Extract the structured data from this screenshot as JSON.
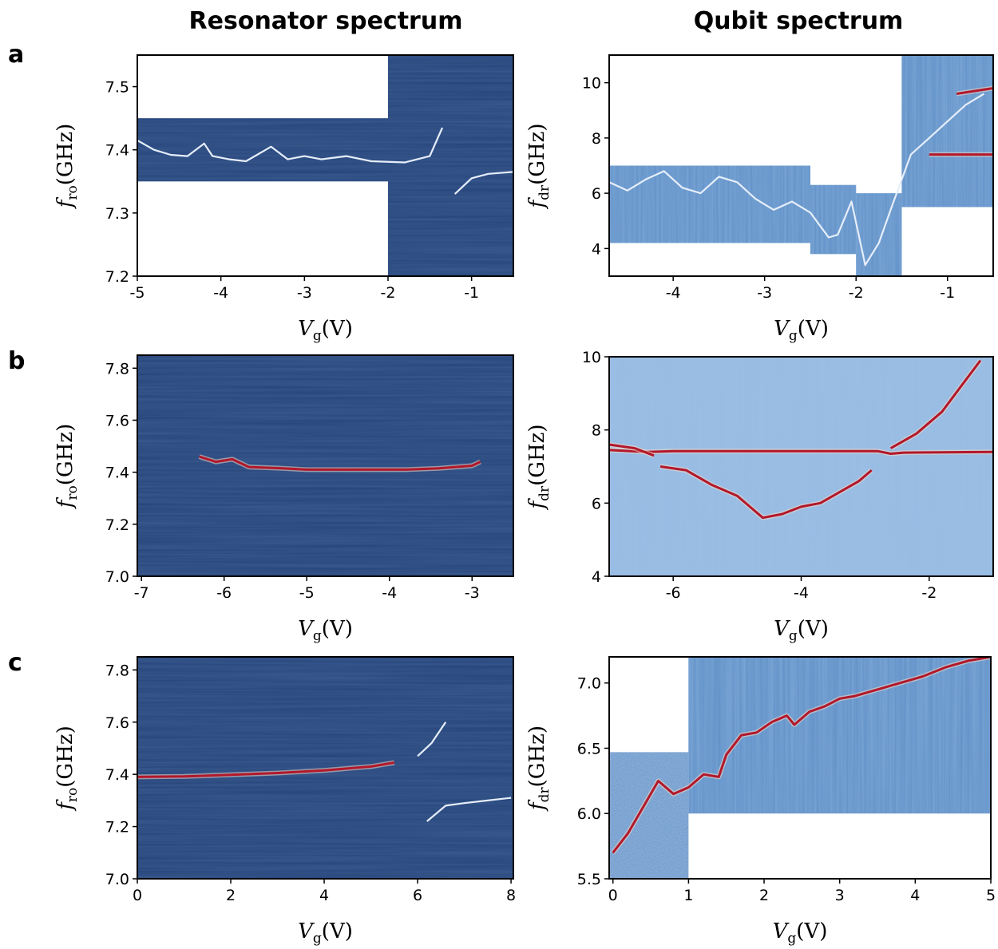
{
  "headers": {
    "left": "Resonator spectrum",
    "right": "Qubit spectrum"
  },
  "rows": [
    "a",
    "b",
    "c"
  ],
  "colors": {
    "background": "#24437a",
    "midtone": "#5f8fc6",
    "ridge": "#e6eefa",
    "peak": "#b2182b",
    "frame": "#000000"
  },
  "chart_data": [
    {
      "id": "a-res",
      "type": "heatmap",
      "xlabel": {
        "main": "V",
        "sub": "g",
        "unit": "(V)"
      },
      "ylabel": {
        "main": "f",
        "sub": "ro",
        "unit": "(GHz)"
      },
      "xlim": [
        -5,
        -0.5
      ],
      "ylim": [
        7.2,
        7.55
      ],
      "xticks": [
        -5,
        -4,
        -3,
        -2,
        -1
      ],
      "yticks": [
        7.2,
        7.3,
        7.4,
        7.5
      ],
      "xtick_labels": [
        "-5",
        "-4",
        "-3",
        "-2",
        "-1"
      ],
      "ytick_labels": [
        "7.2",
        "7.3",
        "7.4",
        "7.5"
      ],
      "scans": [
        {
          "x": [
            -5,
            -2
          ],
          "y": [
            7.35,
            7.45
          ],
          "style": "dark"
        },
        {
          "x": [
            -2,
            -0.5
          ],
          "y": [
            7.2,
            7.55
          ],
          "style": "dark"
        }
      ],
      "ridge": {
        "color": "ridge",
        "points": [
          [
            -5,
            7.415
          ],
          [
            -4.8,
            7.4
          ],
          [
            -4.6,
            7.392
          ],
          [
            -4.4,
            7.39
          ],
          [
            -4.2,
            7.41
          ],
          [
            -4.1,
            7.39
          ],
          [
            -3.9,
            7.385
          ],
          [
            -3.7,
            7.382
          ],
          [
            -3.4,
            7.405
          ],
          [
            -3.2,
            7.385
          ],
          [
            -3,
            7.39
          ],
          [
            -2.8,
            7.385
          ],
          [
            -2.5,
            7.39
          ],
          [
            -2.2,
            7.382
          ],
          [
            -1.8,
            7.38
          ],
          [
            -1.5,
            7.39
          ],
          [
            -1.35,
            7.435
          ]
        ]
      },
      "ridge2": {
        "color": "ridge",
        "points": [
          [
            -1.2,
            7.33
          ],
          [
            -1.0,
            7.355
          ],
          [
            -0.8,
            7.362
          ],
          [
            -0.5,
            7.365
          ]
        ]
      }
    },
    {
      "id": "a-qub",
      "type": "heatmap",
      "xlabel": {
        "main": "V",
        "sub": "g",
        "unit": "(V)"
      },
      "ylabel": {
        "main": "f",
        "sub": "dr",
        "unit": "(GHz)"
      },
      "xlim": [
        -4.7,
        -0.5
      ],
      "ylim": [
        3,
        11
      ],
      "xticks": [
        -4,
        -3,
        -2,
        -1
      ],
      "yticks": [
        4,
        6,
        8,
        10
      ],
      "xtick_labels": [
        "-4",
        "-3",
        "-2",
        "-1"
      ],
      "ytick_labels": [
        "4",
        "6",
        "8",
        "10"
      ],
      "scans": [
        {
          "x": [
            -4.7,
            -2.5
          ],
          "y": [
            4.2,
            7
          ],
          "style": "medium"
        },
        {
          "x": [
            -2.5,
            -2.0
          ],
          "y": [
            3.8,
            6.3
          ],
          "style": "medium"
        },
        {
          "x": [
            -2.0,
            -1.5
          ],
          "y": [
            3,
            6
          ],
          "style": "medium"
        },
        {
          "x": [
            -1.5,
            -0.5
          ],
          "y": [
            5.5,
            11
          ],
          "style": "medium"
        }
      ],
      "ridge": {
        "color": "ridge",
        "points": [
          [
            -4.7,
            6.4
          ],
          [
            -4.5,
            6.1
          ],
          [
            -4.3,
            6.5
          ],
          [
            -4.1,
            6.8
          ],
          [
            -3.9,
            6.2
          ],
          [
            -3.7,
            6.0
          ],
          [
            -3.5,
            6.6
          ],
          [
            -3.3,
            6.4
          ],
          [
            -3.1,
            5.8
          ],
          [
            -2.9,
            5.4
          ],
          [
            -2.7,
            5.7
          ],
          [
            -2.5,
            5.3
          ],
          [
            -2.3,
            4.4
          ],
          [
            -2.2,
            4.5
          ],
          [
            -2.05,
            5.7
          ],
          [
            -1.9,
            3.4
          ],
          [
            -1.75,
            4.2
          ],
          [
            -1.6,
            5.6
          ],
          [
            -1.4,
            7.4
          ],
          [
            -1.2,
            8.0
          ],
          [
            -1.0,
            8.6
          ],
          [
            -0.8,
            9.2
          ],
          [
            -0.6,
            9.6
          ]
        ]
      },
      "lines": [
        {
          "color": "peak",
          "points": [
            [
              -1.2,
              7.4
            ],
            [
              -0.5,
              7.4
            ]
          ]
        },
        {
          "color": "peak",
          "points": [
            [
              -0.9,
              9.6
            ],
            [
              -0.5,
              9.8
            ]
          ]
        }
      ]
    },
    {
      "id": "b-res",
      "type": "heatmap",
      "xlabel": {
        "main": "V",
        "sub": "g",
        "unit": "(V)"
      },
      "ylabel": {
        "main": "f",
        "sub": "ro",
        "unit": "(GHz)"
      },
      "xlim": [
        -7.05,
        -2.5
      ],
      "ylim": [
        7.0,
        7.85
      ],
      "xticks": [
        -7,
        -6,
        -5,
        -4,
        -3
      ],
      "yticks": [
        7.0,
        7.2,
        7.4,
        7.6,
        7.8
      ],
      "xtick_labels": [
        "-7",
        "-6",
        "-5",
        "-4",
        "-3"
      ],
      "ytick_labels": [
        "7.0",
        "7.2",
        "7.4",
        "7.6",
        "7.8"
      ],
      "scans": [
        {
          "x": [
            -7.05,
            -2.5
          ],
          "y": [
            7.0,
            7.85
          ],
          "style": "dark"
        }
      ],
      "ridge": {
        "color": "peak",
        "points": [
          [
            -6.3,
            7.46
          ],
          [
            -6.1,
            7.44
          ],
          [
            -5.9,
            7.45
          ],
          [
            -5.7,
            7.42
          ],
          [
            -5.3,
            7.415
          ],
          [
            -5.0,
            7.41
          ],
          [
            -4.6,
            7.41
          ],
          [
            -4.2,
            7.41
          ],
          [
            -3.8,
            7.41
          ],
          [
            -3.4,
            7.415
          ],
          [
            -3.0,
            7.425
          ],
          [
            -2.9,
            7.44
          ]
        ]
      }
    },
    {
      "id": "b-qub",
      "type": "heatmap",
      "xlabel": {
        "main": "V",
        "sub": "g",
        "unit": "(V)"
      },
      "ylabel": {
        "main": "f",
        "sub": "dr",
        "unit": "(GHz)"
      },
      "xlim": [
        -7,
        -1
      ],
      "ylim": [
        4,
        10
      ],
      "xticks": [
        -6,
        -4,
        -2
      ],
      "yticks": [
        4,
        6,
        8,
        10
      ],
      "xtick_labels": [
        "-6",
        "-4",
        "-2"
      ],
      "ytick_labels": [
        "4",
        "6",
        "8",
        "10"
      ],
      "scans": [
        {
          "x": [
            -7,
            -1
          ],
          "y": [
            4,
            10
          ],
          "style": "light"
        }
      ],
      "lines": [
        {
          "color": "peak",
          "points": [
            [
              -7,
              7.45
            ],
            [
              -6.4,
              7.4
            ],
            [
              -6,
              7.42
            ],
            [
              -4,
              7.42
            ],
            [
              -2.8,
              7.42
            ],
            [
              -2.6,
              7.35
            ],
            [
              -2.4,
              7.38
            ],
            [
              -1,
              7.4
            ]
          ]
        },
        {
          "color": "peak",
          "points": [
            [
              -7,
              7.6
            ],
            [
              -6.6,
              7.5
            ],
            [
              -6.3,
              7.3
            ]
          ]
        },
        {
          "color": "peak",
          "points": [
            [
              -6.2,
              7.0
            ],
            [
              -5.8,
              6.9
            ],
            [
              -5.4,
              6.5
            ],
            [
              -5.0,
              6.2
            ],
            [
              -4.6,
              5.6
            ],
            [
              -4.3,
              5.7
            ],
            [
              -4.0,
              5.9
            ],
            [
              -3.7,
              6.0
            ],
            [
              -3.4,
              6.3
            ],
            [
              -3.1,
              6.6
            ],
            [
              -2.9,
              6.9
            ]
          ]
        },
        {
          "color": "peak",
          "points": [
            [
              -2.6,
              7.5
            ],
            [
              -2.2,
              7.9
            ],
            [
              -1.8,
              8.5
            ],
            [
              -1.5,
              9.2
            ],
            [
              -1.2,
              9.9
            ]
          ]
        }
      ]
    },
    {
      "id": "c-res",
      "type": "heatmap",
      "xlabel": {
        "main": "V",
        "sub": "g",
        "unit": "(V)"
      },
      "ylabel": {
        "main": "f",
        "sub": "ro",
        "unit": "(GHz)"
      },
      "xlim": [
        0,
        8.05
      ],
      "ylim": [
        7.0,
        7.85
      ],
      "xticks": [
        0,
        2,
        4,
        6,
        8
      ],
      "yticks": [
        7.0,
        7.2,
        7.4,
        7.6,
        7.8
      ],
      "xtick_labels": [
        "0",
        "2",
        "4",
        "6",
        "8"
      ],
      "ytick_labels": [
        "7.0",
        "7.2",
        "7.4",
        "7.6",
        "7.8"
      ],
      "scans": [
        {
          "x": [
            0,
            8.05
          ],
          "y": [
            7.0,
            7.85
          ],
          "style": "dark"
        }
      ],
      "ridge": {
        "color": "peak",
        "points": [
          [
            0,
            7.39
          ],
          [
            1,
            7.392
          ],
          [
            2,
            7.398
          ],
          [
            3,
            7.405
          ],
          [
            4,
            7.415
          ],
          [
            5,
            7.43
          ],
          [
            5.5,
            7.445
          ]
        ]
      },
      "ridge2": {
        "color": "ridge",
        "points": [
          [
            6.0,
            7.47
          ],
          [
            6.3,
            7.52
          ],
          [
            6.6,
            7.6
          ]
        ]
      },
      "ridge3": {
        "color": "ridge",
        "points": [
          [
            6.2,
            7.22
          ],
          [
            6.6,
            7.28
          ],
          [
            7.0,
            7.29
          ],
          [
            7.5,
            7.3
          ],
          [
            8.0,
            7.31
          ]
        ]
      }
    },
    {
      "id": "c-qub",
      "type": "heatmap",
      "xlabel": {
        "main": "V",
        "sub": "g",
        "unit": "(V)"
      },
      "ylabel": {
        "main": "f",
        "sub": "dr",
        "unit": "(GHz)"
      },
      "xlim": [
        -0.05,
        5
      ],
      "ylim": [
        5.5,
        7.2
      ],
      "xticks": [
        0,
        1,
        2,
        3,
        4,
        5
      ],
      "yticks": [
        5.5,
        6.0,
        6.5,
        7.0
      ],
      "xtick_labels": [
        "0",
        "1",
        "2",
        "3",
        "4",
        "5"
      ],
      "ytick_labels": [
        "5.5",
        "6.0",
        "6.5",
        "7.0"
      ],
      "scans": [
        {
          "x": [
            -0.05,
            1
          ],
          "y": [
            5.5,
            6.47
          ],
          "style": "noisy"
        },
        {
          "x": [
            1,
            5
          ],
          "y": [
            6.0,
            7.2
          ],
          "style": "medium"
        }
      ],
      "lines": [
        {
          "color": "peak",
          "points": [
            [
              0.0,
              5.7
            ],
            [
              0.2,
              5.85
            ],
            [
              0.4,
              6.05
            ],
            [
              0.6,
              6.25
            ],
            [
              0.8,
              6.15
            ],
            [
              1.0,
              6.2
            ],
            [
              1.2,
              6.3
            ],
            [
              1.4,
              6.28
            ],
            [
              1.5,
              6.45
            ],
            [
              1.7,
              6.6
            ],
            [
              1.9,
              6.62
            ],
            [
              2.1,
              6.7
            ],
            [
              2.3,
              6.75
            ],
            [
              2.4,
              6.68
            ],
            [
              2.6,
              6.78
            ],
            [
              2.8,
              6.82
            ],
            [
              3.0,
              6.88
            ],
            [
              3.2,
              6.9
            ],
            [
              3.5,
              6.95
            ],
            [
              3.8,
              7.0
            ],
            [
              4.1,
              7.05
            ],
            [
              4.4,
              7.12
            ],
            [
              4.7,
              7.17
            ],
            [
              5.0,
              7.2
            ]
          ]
        }
      ]
    }
  ]
}
